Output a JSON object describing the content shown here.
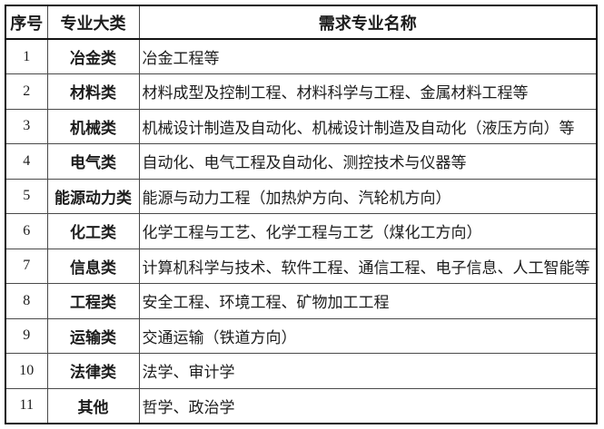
{
  "table": {
    "headers": [
      "序号",
      "专业大类",
      "需求专业名称"
    ],
    "rows": [
      {
        "no": "1",
        "category": "冶金类",
        "majors": "冶金工程等"
      },
      {
        "no": "2",
        "category": "材料类",
        "majors": "材料成型及控制工程、材料科学与工程、金属材料工程等"
      },
      {
        "no": "3",
        "category": "机械类",
        "majors": "机械设计制造及自动化、机械设计制造及自动化（液压方向）等"
      },
      {
        "no": "4",
        "category": "电气类",
        "majors": "自动化、电气工程及自动化、测控技术与仪器等"
      },
      {
        "no": "5",
        "category": "能源动力类",
        "majors": "能源与动力工程（加热炉方向、汽轮机方向）"
      },
      {
        "no": "6",
        "category": "化工类",
        "majors": "化学工程与工艺、化学工程与工艺（煤化工方向）"
      },
      {
        "no": "7",
        "category": "信息类",
        "majors": "计算机科学与技术、软件工程、通信工程、电子信息、人工智能等"
      },
      {
        "no": "8",
        "category": "工程类",
        "majors": "安全工程、环境工程、矿物加工工程"
      },
      {
        "no": "9",
        "category": "运输类",
        "majors": "交通运输（铁道方向）"
      },
      {
        "no": "10",
        "category": "法律类",
        "majors": "法学、审计学"
      },
      {
        "no": "11",
        "category": "其他",
        "majors": "哲学、政治学"
      }
    ]
  },
  "colors": {
    "background": "#ffffff",
    "text": "#1c1c1c",
    "outer_border": "#141414",
    "inner_border": "#4a4a4a"
  }
}
